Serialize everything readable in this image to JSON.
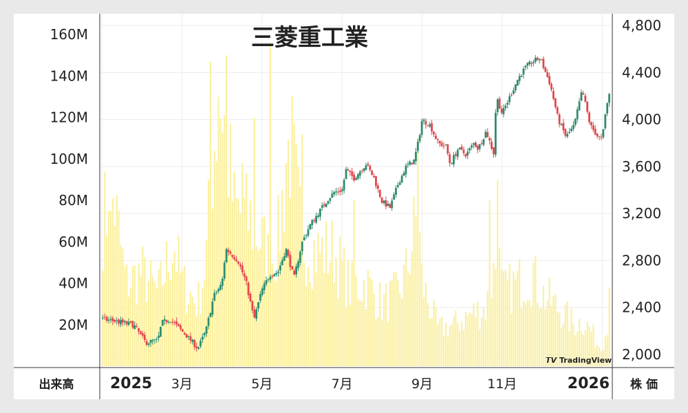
{
  "chart_data": {
    "type": "candlestick",
    "title": "三菱重工業",
    "left_axis": {
      "label": "出来高",
      "ticks": [
        "20M",
        "40M",
        "60M",
        "80M",
        "100M",
        "120M",
        "140M",
        "160M"
      ],
      "tick_values": [
        20,
        40,
        60,
        80,
        100,
        120,
        140,
        160
      ],
      "unit": "M",
      "range": [
        0,
        170
      ]
    },
    "right_axis": {
      "label": "株 価",
      "ticks": [
        "2,000",
        "2,400",
        "2,800",
        "3,200",
        "3,600",
        "4,000",
        "4,400",
        "4,800"
      ],
      "tick_values": [
        2000,
        2400,
        2800,
        3200,
        3600,
        4000,
        4400,
        4800
      ],
      "range": [
        1900,
        4900
      ]
    },
    "x_axis": {
      "ticks": [
        "2025",
        "3月",
        "5月",
        "7月",
        "9月",
        "11月",
        "2026"
      ],
      "tick_positions": [
        0,
        2,
        4,
        6,
        8,
        10,
        12.5
      ],
      "bold_ticks": [
        "2025",
        "2026"
      ],
      "range_months": [
        0,
        12.7
      ]
    },
    "grid": true,
    "watermark": "TradingView",
    "colors": {
      "up": "#2e8b6e",
      "down": "#e0474c",
      "volume": "#fbf0a0",
      "grid": "#ececec"
    },
    "price_path": [
      [
        0.0,
        2300
      ],
      [
        0.4,
        2280
      ],
      [
        0.8,
        2250
      ],
      [
        1.1,
        2100
      ],
      [
        1.4,
        2120
      ],
      [
        1.5,
        2270
      ],
      [
        1.7,
        2300
      ],
      [
        2.0,
        2200
      ],
      [
        2.2,
        2130
      ],
      [
        2.4,
        2050
      ],
      [
        2.6,
        2200
      ],
      [
        2.8,
        2500
      ],
      [
        3.0,
        2600
      ],
      [
        3.1,
        2900
      ],
      [
        3.4,
        2800
      ],
      [
        3.6,
        2620
      ],
      [
        3.8,
        2300
      ],
      [
        4.0,
        2550
      ],
      [
        4.2,
        2680
      ],
      [
        4.4,
        2700
      ],
      [
        4.6,
        2900
      ],
      [
        4.8,
        2650
      ],
      [
        5.0,
        2950
      ],
      [
        5.2,
        3100
      ],
      [
        5.4,
        3200
      ],
      [
        5.6,
        3300
      ],
      [
        5.8,
        3380
      ],
      [
        6.0,
        3400
      ],
      [
        6.1,
        3570
      ],
      [
        6.3,
        3500
      ],
      [
        6.6,
        3620
      ],
      [
        6.8,
        3500
      ],
      [
        7.0,
        3300
      ],
      [
        7.2,
        3250
      ],
      [
        7.4,
        3450
      ],
      [
        7.6,
        3600
      ],
      [
        7.8,
        3650
      ],
      [
        7.9,
        3800
      ],
      [
        8.0,
        4000
      ],
      [
        8.2,
        3950
      ],
      [
        8.4,
        3800
      ],
      [
        8.6,
        3770
      ],
      [
        8.7,
        3620
      ],
      [
        8.9,
        3750
      ],
      [
        9.1,
        3700
      ],
      [
        9.3,
        3800
      ],
      [
        9.4,
        3750
      ],
      [
        9.6,
        3900
      ],
      [
        9.8,
        3700
      ],
      [
        9.85,
        4200
      ],
      [
        10.0,
        4050
      ],
      [
        10.2,
        4200
      ],
      [
        10.4,
        4350
      ],
      [
        10.6,
        4450
      ],
      [
        10.8,
        4500
      ],
      [
        10.95,
        4520
      ],
      [
        11.2,
        4300
      ],
      [
        11.4,
        4000
      ],
      [
        11.6,
        3850
      ],
      [
        11.8,
        3950
      ],
      [
        12.0,
        4250
      ],
      [
        12.2,
        3950
      ],
      [
        12.4,
        3850
      ],
      [
        12.5,
        3830
      ],
      [
        12.6,
        4100
      ],
      [
        12.7,
        4250
      ]
    ],
    "volume_path": [
      [
        0.0,
        70
      ],
      [
        0.3,
        80
      ],
      [
        0.6,
        40
      ],
      [
        1.0,
        45
      ],
      [
        1.4,
        35
      ],
      [
        1.8,
        60
      ],
      [
        2.0,
        40
      ],
      [
        2.4,
        30
      ],
      [
        2.6,
        50
      ],
      [
        2.8,
        110
      ],
      [
        3.0,
        130
      ],
      [
        3.3,
        75
      ],
      [
        3.7,
        70
      ],
      [
        4.0,
        60
      ],
      [
        4.2,
        50
      ],
      [
        4.4,
        60
      ],
      [
        4.7,
        110
      ],
      [
        5.0,
        60
      ],
      [
        5.4,
        55
      ],
      [
        5.8,
        55
      ],
      [
        6.2,
        38
      ],
      [
        6.6,
        40
      ],
      [
        7.0,
        30
      ],
      [
        7.4,
        35
      ],
      [
        7.6,
        45
      ],
      [
        7.9,
        75
      ],
      [
        8.0,
        40
      ],
      [
        8.4,
        18
      ],
      [
        8.8,
        20
      ],
      [
        9.2,
        25
      ],
      [
        9.6,
        28
      ],
      [
        9.9,
        55
      ],
      [
        10.0,
        35
      ],
      [
        10.4,
        40
      ],
      [
        10.7,
        45
      ],
      [
        11.0,
        35
      ],
      [
        11.4,
        28
      ],
      [
        11.8,
        20
      ],
      [
        12.0,
        22
      ],
      [
        12.2,
        18
      ],
      [
        12.4,
        10
      ],
      [
        12.55,
        12
      ],
      [
        12.7,
        30
      ]
    ],
    "volume_spikes": [
      [
        2.7,
        147
      ],
      [
        2.9,
        130
      ],
      [
        3.1,
        150
      ],
      [
        4.2,
        156
      ],
      [
        3.8,
        120
      ],
      [
        5.0,
        112
      ],
      [
        4.6,
        98
      ],
      [
        6.3,
        80
      ],
      [
        3.5,
        98
      ],
      [
        0.2,
        75
      ],
      [
        7.9,
        110
      ],
      [
        9.7,
        80
      ],
      [
        9.9,
        90
      ],
      [
        10.8,
        50
      ],
      [
        12.7,
        38
      ]
    ]
  }
}
